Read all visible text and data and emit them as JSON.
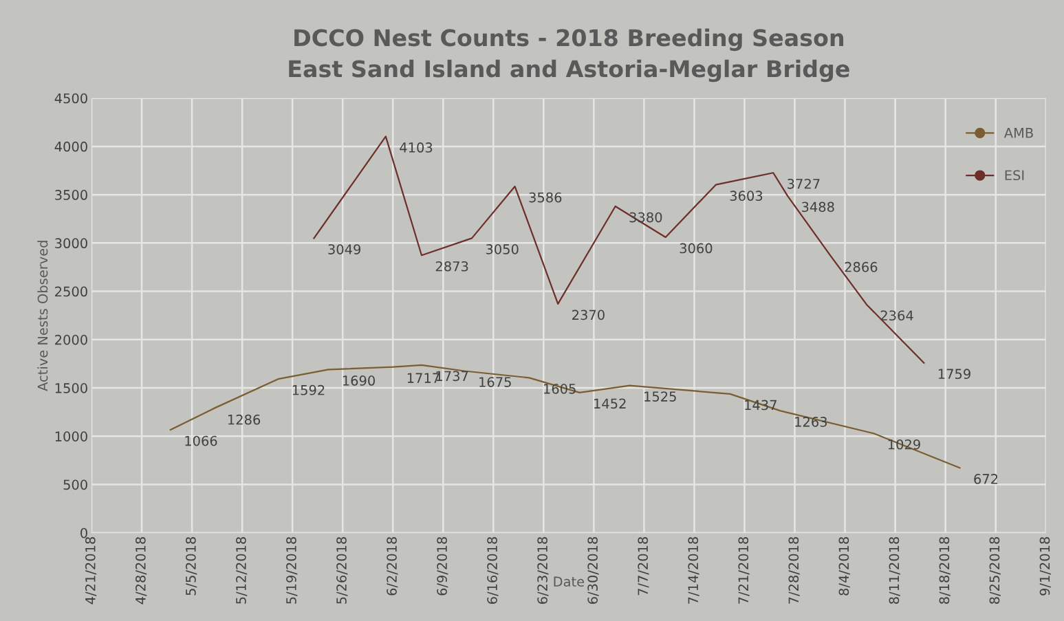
{
  "chart_data": {
    "type": "line",
    "title": "DCCO Nest Counts - 2018 Breeding Season\nEast Sand Island and Astoria-Meglar Bridge",
    "xlabel": "Date",
    "ylabel": "Active Nests Observed",
    "series": [
      {
        "name": "AMB",
        "color": "#7a5e32",
        "x": [
          "2018-05-02",
          "2018-05-08",
          "2018-05-17",
          "2018-05-24",
          "2018-06-02",
          "2018-06-06",
          "2018-06-12",
          "2018-06-21",
          "2018-06-28",
          "2018-07-05",
          "2018-07-19",
          "2018-07-26",
          "2018-08-08",
          "2018-08-20"
        ],
        "values": [
          1066,
          1286,
          1592,
          1690,
          1717,
          1737,
          1675,
          1605,
          1452,
          1525,
          1437,
          1263,
          1029,
          672
        ]
      },
      {
        "name": "ESI",
        "color": "#6e2f2b",
        "x": [
          "2018-05-22",
          "2018-06-01",
          "2018-06-06",
          "2018-06-13",
          "2018-06-19",
          "2018-06-25",
          "2018-07-03",
          "2018-07-10",
          "2018-07-17",
          "2018-07-25",
          "2018-07-27",
          "2018-08-02",
          "2018-08-07",
          "2018-08-15"
        ],
        "values": [
          3049,
          4103,
          2873,
          3050,
          3586,
          2370,
          3380,
          3060,
          3603,
          3727,
          3488,
          2866,
          2364,
          1759
        ]
      }
    ],
    "xlim": [
      "2018-04-21",
      "2018-09-01"
    ],
    "xticks": [
      {
        "value": "2018-04-21",
        "label": "4/21/2018"
      },
      {
        "value": "2018-04-28",
        "label": "4/28/2018"
      },
      {
        "value": "2018-05-05",
        "label": "5/5/2018"
      },
      {
        "value": "2018-05-12",
        "label": "5/12/2018"
      },
      {
        "value": "2018-05-19",
        "label": "5/19/2018"
      },
      {
        "value": "2018-05-26",
        "label": "5/26/2018"
      },
      {
        "value": "2018-06-02",
        "label": "6/2/2018"
      },
      {
        "value": "2018-06-09",
        "label": "6/9/2018"
      },
      {
        "value": "2018-06-16",
        "label": "6/16/2018"
      },
      {
        "value": "2018-06-23",
        "label": "6/23/2018"
      },
      {
        "value": "2018-06-30",
        "label": "6/30/2018"
      },
      {
        "value": "2018-07-07",
        "label": "7/7/2018"
      },
      {
        "value": "2018-07-14",
        "label": "7/14/2018"
      },
      {
        "value": "2018-07-21",
        "label": "7/21/2018"
      },
      {
        "value": "2018-07-28",
        "label": "7/28/2018"
      },
      {
        "value": "2018-08-04",
        "label": "8/4/2018"
      },
      {
        "value": "2018-08-11",
        "label": "8/11/2018"
      },
      {
        "value": "2018-08-18",
        "label": "8/18/2018"
      },
      {
        "value": "2018-08-25",
        "label": "8/25/2018"
      },
      {
        "value": "2018-09-01",
        "label": "9/1/2018"
      }
    ],
    "ylim": [
      0,
      4500
    ],
    "yticks": [
      0,
      500,
      1000,
      1500,
      2000,
      2500,
      3000,
      3500,
      4000,
      4500
    ],
    "grid": true,
    "legend": "right",
    "data_labels": true,
    "marker": "none",
    "line_style": "solid"
  }
}
